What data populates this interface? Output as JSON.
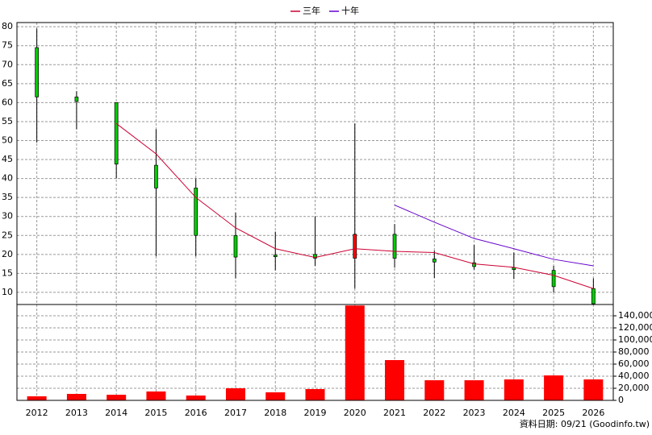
{
  "chart_data": {
    "type": "candlestick",
    "categories": [
      "2012",
      "2013",
      "2014",
      "2015",
      "2016",
      "2017",
      "2018",
      "2019",
      "2020",
      "2021",
      "2022",
      "2023",
      "2024",
      "2025",
      "2026"
    ],
    "open": [
      74.5,
      61.5,
      60,
      43.5,
      37.5,
      25,
      19.8,
      20,
      19,
      25.3,
      18.8,
      17.8,
      16.5,
      15.8,
      11
    ],
    "high": [
      79.5,
      63,
      60,
      53,
      40,
      31,
      26,
      30,
      54.5,
      28,
      21,
      22.5,
      20.5,
      17,
      13.7
    ],
    "low": [
      49.5,
      53,
      40,
      19.5,
      19.5,
      13.7,
      15.8,
      17,
      11,
      16.5,
      13.8,
      16,
      13.5,
      10,
      6.8
    ],
    "close": [
      61.5,
      60.3,
      43.8,
      37.5,
      25,
      19.3,
      19.4,
      19,
      25.3,
      19,
      18,
      16.8,
      16,
      11.5,
      7
    ],
    "up_color": "#ff0000",
    "down_color": "#00cc00",
    "series": [
      {
        "name": "三年",
        "color": "#cc0033",
        "values": [
          null,
          null,
          54.5,
          46.5,
          35,
          27,
          21.5,
          19.2,
          21.5,
          20.8,
          20.5,
          17.5,
          16.6,
          14.5,
          11
        ]
      },
      {
        "name": "十年",
        "color": "#6600cc",
        "values": [
          null,
          null,
          null,
          null,
          null,
          null,
          null,
          null,
          null,
          33,
          28.5,
          24.2,
          21.5,
          18.7,
          17
        ]
      }
    ],
    "ylim": [
      6.8,
      81.1
    ],
    "yticks": [
      10,
      15,
      20,
      25,
      30,
      35,
      40,
      45,
      50,
      55,
      60,
      65,
      70,
      75,
      80
    ],
    "volume": {
      "color": "#ff0000",
      "values": [
        6700,
        10700,
        9300,
        14700,
        8000,
        20000,
        13300,
        18700,
        157000,
        66700,
        33300,
        33300,
        34700,
        41300,
        34700
      ],
      "ylim": [
        0,
        158700
      ],
      "yticks": [
        0,
        {
          "value": 20000,
          "label": "20,000"
        },
        {
          "value": 40000,
          "label": "40,000"
        },
        {
          "value": 60000,
          "label": "60,000"
        },
        {
          "value": 80000,
          "label": "80,000"
        },
        {
          "value": 100000,
          "label": "100,000"
        },
        {
          "value": 120000,
          "label": "120,000"
        },
        {
          "value": 140000,
          "label": "140,000"
        }
      ]
    },
    "grid": true,
    "footer": "資料日期: 09/21  (Goodinfo.tw)"
  }
}
